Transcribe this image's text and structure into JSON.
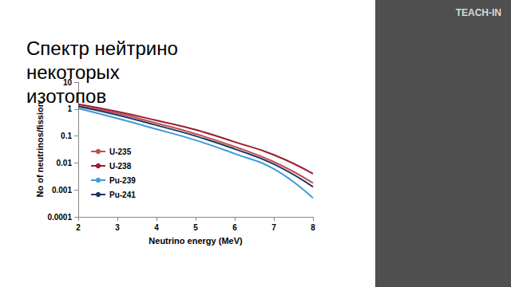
{
  "chart_data": {
    "type": "line",
    "title": "Спектр нейтрино некоторых изотопов",
    "x_label": "Neutrino energy (MeV)",
    "y_label": "No of neutrinos/fission",
    "annotations": [
      "TEACH-IN"
    ],
    "x": [
      2,
      3,
      4,
      5,
      6,
      7,
      8
    ],
    "series": [
      {
        "name": "U-235",
        "color": "#c0504d",
        "values": [
          1.3,
          0.7,
          0.3,
          0.12,
          0.04,
          0.011,
          0.0018
        ]
      },
      {
        "name": "U-238",
        "color": "#9b1b30",
        "values": [
          1.5,
          0.8,
          0.38,
          0.17,
          0.06,
          0.02,
          0.004
        ]
      },
      {
        "name": "Pu-239",
        "color": "#3d9bd8",
        "values": [
          1.05,
          0.45,
          0.18,
          0.07,
          0.022,
          0.006,
          0.0005
        ]
      },
      {
        "name": "Pu-241",
        "color": "#1f3864",
        "values": [
          1.25,
          0.6,
          0.25,
          0.1,
          0.033,
          0.009,
          0.0013
        ]
      }
    ],
    "xlim": [
      2,
      8
    ],
    "xticks": [
      2,
      3,
      4,
      5,
      6,
      7,
      8
    ],
    "ylim": [
      0.0001,
      10
    ],
    "yticks": [
      0.0001,
      0.001,
      0.01,
      0.1,
      1,
      10
    ],
    "log": "y",
    "grid": false,
    "legend": "left"
  }
}
